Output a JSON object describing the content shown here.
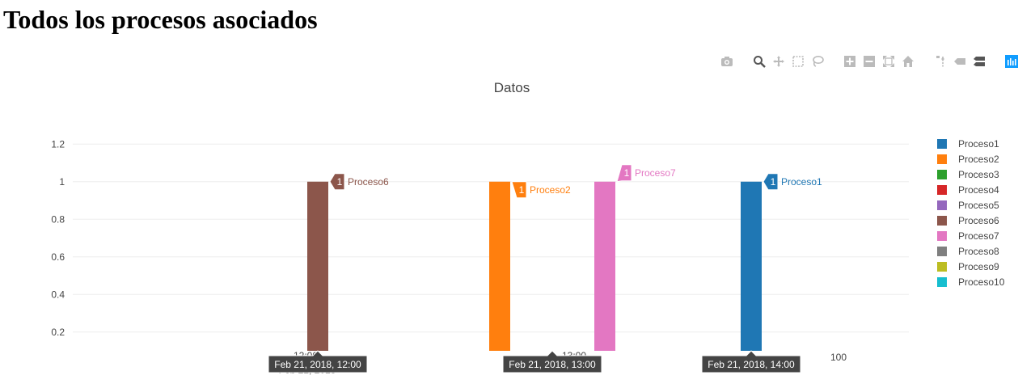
{
  "page": {
    "title": "Todos los procesos asociados"
  },
  "modebar": {
    "buttons": [
      {
        "icon": "camera-icon",
        "group": 0
      },
      {
        "icon": "zoom-icon",
        "group": 1
      },
      {
        "icon": "pan-icon",
        "group": 1
      },
      {
        "icon": "box-select-icon",
        "group": 1
      },
      {
        "icon": "lasso-select-icon",
        "group": 1
      },
      {
        "icon": "zoom-in-icon",
        "group": 2
      },
      {
        "icon": "zoom-out-icon",
        "group": 2
      },
      {
        "icon": "autoscale-icon",
        "group": 2
      },
      {
        "icon": "home-icon",
        "group": 2
      },
      {
        "icon": "spike-lines-icon",
        "group": 3
      },
      {
        "icon": "hover-closest-icon",
        "group": 3
      },
      {
        "icon": "hover-compare-icon",
        "group": 3
      },
      {
        "icon": "plotly-logo-icon",
        "group": 4
      }
    ]
  },
  "colors": {
    "Proceso1": "#1f77b4",
    "Proceso2": "#ff7f0e",
    "Proceso3": "#2ca02c",
    "Proceso4": "#d62728",
    "Proceso5": "#9467bd",
    "Proceso6": "#8c564b",
    "Proceso7": "#e377c2",
    "Proceso8": "#7f7f7f",
    "Proceso9": "#bcbd22",
    "Proceso10": "#17becf",
    "grid": "#eeeeee",
    "hover_bg": "#444444",
    "modebar_icon": "#bbbbbb",
    "modebar_logo": "#119dff"
  },
  "chart_data": {
    "type": "bar",
    "title": "Datos",
    "yticks": [
      "0.2",
      "0.4",
      "0.6",
      "0.8",
      "1",
      "1.2"
    ],
    "ylim": [
      0.1,
      1.25
    ],
    "legend_position": "right",
    "series": [
      {
        "name": "Proceso1",
        "x": "Feb 21, 2018, 14:00",
        "value": 1
      },
      {
        "name": "Proceso2",
        "x": "Feb 21, 2018, 13:00",
        "value": 1
      },
      {
        "name": "Proceso3"
      },
      {
        "name": "Proceso4"
      },
      {
        "name": "Proceso5"
      },
      {
        "name": "Proceso6",
        "x": "Feb 21, 2018, 12:00",
        "value": 1
      },
      {
        "name": "Proceso7",
        "x": "Feb 21, 2018, 13:00",
        "value": 1
      },
      {
        "name": "Proceso8"
      },
      {
        "name": "Proceso9"
      },
      {
        "name": "Proceso10"
      }
    ],
    "hover_labels": [
      {
        "series": "Proceso6",
        "value": "1",
        "name": "Proceso6"
      },
      {
        "series": "Proceso7",
        "value": "1",
        "name": "Proceso7"
      },
      {
        "series": "Proceso2",
        "value": "1",
        "name": "Proceso2"
      },
      {
        "series": "Proceso1",
        "value": "1",
        "name": "Proceso1"
      }
    ],
    "x_hover_labels": [
      "Feb 21, 2018, 12:00",
      "Feb 21, 2018, 13:00",
      "Feb 21, 2018, 14:00"
    ],
    "partial_tick_labels": [
      "12:00",
      "Feb 21, 2018",
      "13:00",
      "100"
    ]
  }
}
